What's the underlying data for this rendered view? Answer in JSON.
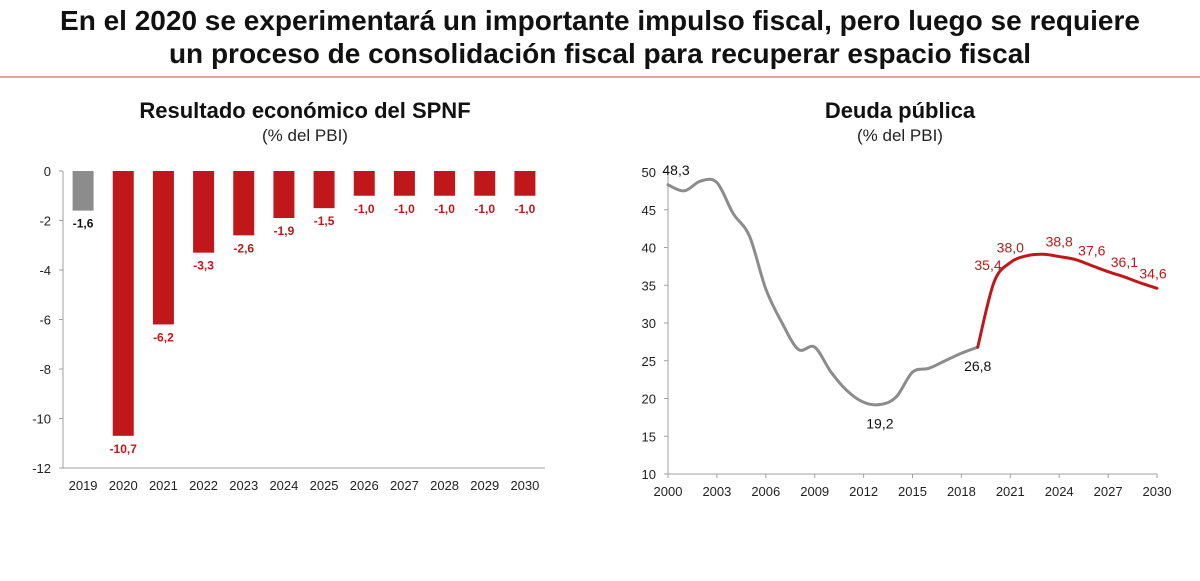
{
  "slide": {
    "title_line1": "En el 2020 se experimentará un importante impulso fiscal, pero luego se requiere",
    "title_line2": "un proceso de consolidación fiscal para recuperar espacio fiscal"
  },
  "colors": {
    "red": "#c0181a",
    "gray": "#8c8c8c",
    "axis": "#a0a0a0"
  },
  "chart_data": [
    {
      "type": "bar",
      "title": "Resultado económico del SPNF",
      "subtitle": "(% del PBI)",
      "categories": [
        "2019",
        "2020",
        "2021",
        "2022",
        "2023",
        "2024",
        "2025",
        "2026",
        "2027",
        "2028",
        "2029",
        "2030"
      ],
      "values": [
        -1.6,
        -10.7,
        -6.2,
        -3.3,
        -2.6,
        -1.9,
        -1.5,
        -1.0,
        -1.0,
        -1.0,
        -1.0,
        -1.0
      ],
      "data_labels": [
        "-1,6",
        "-10,7",
        "-6,2",
        "-3,3",
        "-2,6",
        "-1,9",
        "-1,5",
        "-1,0",
        "-1,0",
        "-1,0",
        "-1,0",
        "-1,0"
      ],
      "bar_colors": [
        "gray",
        "red",
        "red",
        "red",
        "red",
        "red",
        "red",
        "red",
        "red",
        "red",
        "red",
        "red"
      ],
      "ylim": [
        -12,
        0
      ],
      "yticks": [
        0,
        -2,
        -4,
        -6,
        -8,
        -10,
        -12
      ],
      "ytick_labels": [
        "0",
        "-2",
        "-4",
        "-6",
        "-8",
        "-10",
        "-12"
      ],
      "grid": false
    },
    {
      "type": "line",
      "title": "Deuda pública",
      "subtitle": "(% del PBI)",
      "series": [
        {
          "color": "gray",
          "x": [
            2000,
            2001,
            2002,
            2003,
            2004,
            2005,
            2006,
            2007,
            2008,
            2009,
            2010,
            2011,
            2012,
            2013,
            2014,
            2015,
            2016,
            2017,
            2018,
            2019
          ],
          "values": [
            48.3,
            47.5,
            48.8,
            48.6,
            44.5,
            41.5,
            34.5,
            30.0,
            26.5,
            26.8,
            23.5,
            21.0,
            19.5,
            19.2,
            20.2,
            23.5,
            24.0,
            25.0,
            26.0,
            26.8
          ]
        },
        {
          "color": "red",
          "x": [
            2019,
            2020,
            2021,
            2022,
            2023,
            2024,
            2025,
            2026,
            2027,
            2028,
            2029,
            2030
          ],
          "values": [
            26.8,
            35.4,
            38.0,
            38.9,
            39.1,
            38.8,
            38.4,
            37.6,
            36.8,
            36.1,
            35.3,
            34.6
          ]
        }
      ],
      "annotations": [
        {
          "x": 2000,
          "y": 48.3,
          "text": "48,3",
          "color": "black",
          "pos": "above"
        },
        {
          "x": 2013,
          "y": 19.2,
          "text": "19,2",
          "color": "black",
          "pos": "below"
        },
        {
          "x": 2019,
          "y": 26.8,
          "text": "26,8",
          "color": "black",
          "pos": "below"
        },
        {
          "x": 2020,
          "y": 35.4,
          "text": "35,4",
          "color": "red",
          "pos": "above-left"
        },
        {
          "x": 2021,
          "y": 38.0,
          "text": "38,0",
          "color": "red",
          "pos": "above"
        },
        {
          "x": 2024,
          "y": 38.8,
          "text": "38,8",
          "color": "red",
          "pos": "above"
        },
        {
          "x": 2026,
          "y": 37.6,
          "text": "37,6",
          "color": "red",
          "pos": "above"
        },
        {
          "x": 2028,
          "y": 36.1,
          "text": "36,1",
          "color": "red",
          "pos": "above"
        },
        {
          "x": 2030,
          "y": 34.6,
          "text": "34,6",
          "color": "red",
          "pos": "above"
        }
      ],
      "xlim": [
        2000,
        2030
      ],
      "xticks": [
        2000,
        2003,
        2006,
        2009,
        2012,
        2015,
        2018,
        2021,
        2024,
        2027,
        2030
      ],
      "ylim": [
        10,
        50
      ],
      "yticks": [
        10,
        15,
        20,
        25,
        30,
        35,
        40,
        45,
        50
      ],
      "grid": false
    }
  ]
}
